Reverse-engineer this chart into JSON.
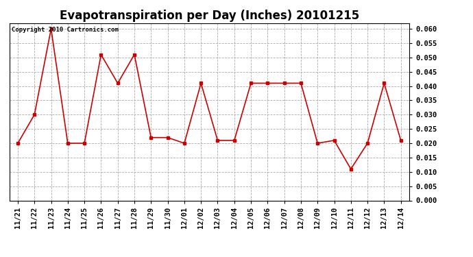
{
  "title": "Evapotranspiration per Day (Inches) 20101215",
  "copyright_text": "Copyright 2010 Cartronics.com",
  "labels": [
    "11/21",
    "11/22",
    "11/23",
    "11/24",
    "11/25",
    "11/26",
    "11/27",
    "11/28",
    "11/29",
    "11/30",
    "12/01",
    "12/02",
    "12/03",
    "12/04",
    "12/05",
    "12/06",
    "12/07",
    "12/08",
    "12/09",
    "12/10",
    "12/11",
    "12/12",
    "12/13",
    "12/14"
  ],
  "values": [
    0.02,
    0.03,
    0.06,
    0.02,
    0.02,
    0.051,
    0.041,
    0.051,
    0.022,
    0.022,
    0.02,
    0.041,
    0.021,
    0.021,
    0.041,
    0.041,
    0.041,
    0.041,
    0.02,
    0.021,
    0.011,
    0.02,
    0.041,
    0.021
  ],
  "ylim": [
    0.0,
    0.062
  ],
  "yticks": [
    0.0,
    0.005,
    0.01,
    0.015,
    0.02,
    0.025,
    0.03,
    0.035,
    0.04,
    0.045,
    0.05,
    0.055,
    0.06
  ],
  "line_color": "#cc0000",
  "marker": "s",
  "marker_color": "#cc0000",
  "bg_color": "#ffffff",
  "grid_color": "#aaaaaa",
  "title_fontsize": 12,
  "tick_fontsize": 7.5,
  "copyright_fontsize": 6.5
}
